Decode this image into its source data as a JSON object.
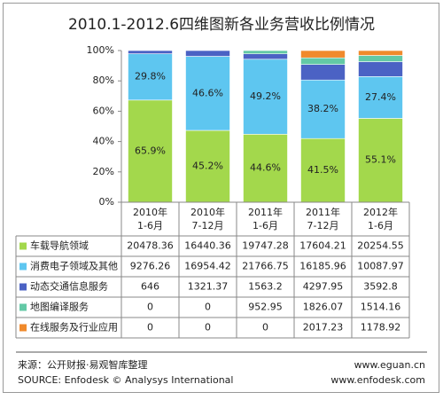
{
  "chart_data": {
    "type": "stacked_bar_percent",
    "title": "2010.1-2012.6四维图新各业务营收比例情况",
    "categories": [
      [
        "2010年",
        "1-6月"
      ],
      [
        "2010年",
        "7-12月"
      ],
      [
        "2011年",
        "1-6月"
      ],
      [
        "2011年",
        "7-12月"
      ],
      [
        "2012年",
        "1-6月"
      ]
    ],
    "ylim": [
      0,
      100
    ],
    "yticks": [
      {
        "value": 0,
        "label": "0%"
      },
      {
        "value": 20,
        "label": "20%"
      },
      {
        "value": 40,
        "label": "40%"
      },
      {
        "value": 60,
        "label": "60%"
      },
      {
        "value": 80,
        "label": "80%"
      },
      {
        "value": 100,
        "label": "100%"
      }
    ],
    "series": [
      {
        "name": "车载导航领域",
        "color": "#a3d84c",
        "values": [
          20478.36,
          16440.36,
          19747.28,
          17604.21,
          20254.55
        ],
        "bar_labels": [
          "65.9%",
          "45.2%",
          "44.6%",
          "41.5%",
          "55.1%"
        ]
      },
      {
        "name": "消费电子领域及其他",
        "color": "#5ec6f0",
        "values": [
          9276.26,
          16954.42,
          21766.75,
          16185.96,
          10087.97
        ],
        "bar_labels": [
          "29.8%",
          "46.6%",
          "49.2%",
          "38.2%",
          "27.4%"
        ]
      },
      {
        "name": "动态交通信息服务",
        "color": "#4b62c4",
        "values": [
          646,
          1321.37,
          1563.2,
          4297.95,
          3592.8
        ]
      },
      {
        "name": "地图编译服务",
        "color": "#63c9a6",
        "values": [
          0,
          0,
          952.95,
          1826.07,
          1514.16
        ]
      },
      {
        "name": "在线服务及行业应用",
        "color": "#f08a2c",
        "values": [
          0,
          0,
          0,
          2017.23,
          1178.92
        ]
      }
    ],
    "source": [
      "来源：公开财报·易观智库整理",
      "SOURCE: Enfodesk © Analysys International"
    ],
    "credits": [
      "www.eguan.cn",
      "www.enfodesk.com"
    ]
  }
}
